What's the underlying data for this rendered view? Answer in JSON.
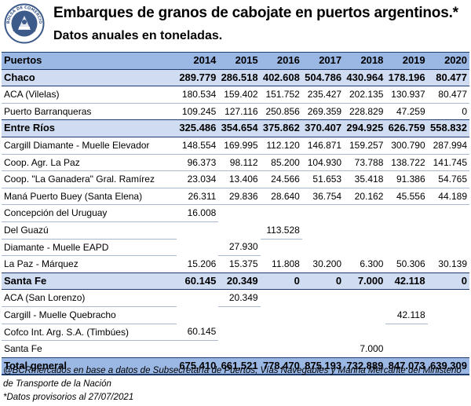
{
  "header": {
    "title": "Embarques de granos de cabojate en puertos argentinos.*",
    "subtitle": "Datos anuales en toneladas.",
    "logo_icon": "bolsa-comercio-rosario-seal-icon",
    "logo_text": "BOLSA DE COMERCIO DE ROSARIO"
  },
  "table": {
    "columns": [
      "Puertos",
      "2014",
      "2015",
      "2016",
      "2017",
      "2018",
      "2019",
      "2020"
    ],
    "groups": [
      {
        "name": "Chaco",
        "values": [
          "289.779",
          "286.518",
          "402.608",
          "504.786",
          "430.964",
          "178.196",
          "80.477"
        ],
        "rows": [
          {
            "name": "ACA (Vilelas)",
            "values": [
              "180.534",
              "159.402",
              "151.752",
              "235.427",
              "202.135",
              "130.937",
              "80.477"
            ]
          },
          {
            "name": "Puerto Barranqueras",
            "values": [
              "109.245",
              "127.116",
              "250.856",
              "269.359",
              "228.829",
              "47.259",
              "0"
            ]
          }
        ]
      },
      {
        "name": "Entre Ríos",
        "values": [
          "325.486",
          "354.654",
          "375.862",
          "370.407",
          "294.925",
          "626.759",
          "558.832"
        ],
        "rows": [
          {
            "name": "Cargill Diamante - Muelle Elevador",
            "values": [
              "148.554",
              "169.995",
              "112.120",
              "146.871",
              "159.257",
              "300.790",
              "287.994"
            ]
          },
          {
            "name": "Coop. Agr. La Paz",
            "values": [
              "96.373",
              "98.112",
              "85.200",
              "104.930",
              "73.788",
              "138.722",
              "141.745"
            ]
          },
          {
            "name": "Coop. \"La Ganadera\" Gral. Ramírez",
            "values": [
              "23.034",
              "13.406",
              "24.566",
              "51.653",
              "35.418",
              "91.386",
              "54.765"
            ]
          },
          {
            "name": "Maná Puerto Buey (Santa Elena)",
            "values": [
              "26.311",
              "29.836",
              "28.640",
              "36.754",
              "20.162",
              "45.556",
              "44.189"
            ]
          },
          {
            "name": "Concepción del Uruguay",
            "values": [
              "16.008",
              "",
              "",
              "",
              "",
              "",
              ""
            ]
          },
          {
            "name": "Del Guazú",
            "values": [
              "",
              "",
              "113.528",
              "",
              "",
              "",
              ""
            ]
          },
          {
            "name": "Diamante - Muelle EAPD",
            "values": [
              "",
              "27.930",
              "",
              "",
              "",
              "",
              ""
            ]
          },
          {
            "name": "La Paz - Márquez",
            "values": [
              "15.206",
              "15.375",
              "11.808",
              "30.200",
              "6.300",
              "50.306",
              "30.139"
            ]
          }
        ]
      },
      {
        "name": "Santa Fe",
        "values": [
          "60.145",
          "20.349",
          "0",
          "0",
          "7.000",
          "42.118",
          "0"
        ],
        "rows": [
          {
            "name": "ACA (San Lorenzo)",
            "values": [
              "",
              "20.349",
              "",
              "",
              "",
              "",
              ""
            ]
          },
          {
            "name": "Cargill - Muelle Quebracho",
            "values": [
              "",
              "",
              "",
              "",
              "",
              "42.118",
              ""
            ]
          },
          {
            "name": "Cofco Int. Arg. S.A. (Timbúes)",
            "values": [
              "60.145",
              "",
              "",
              "",
              "",
              "",
              ""
            ]
          },
          {
            "name": "Santa Fe",
            "values": [
              "",
              "",
              "",
              "",
              "7.000",
              "",
              ""
            ]
          }
        ]
      }
    ],
    "total": {
      "name": "Total general",
      "values": [
        "675.410",
        "661.521",
        "778.470",
        "875.193",
        "732.889",
        "847.073",
        "639.309"
      ]
    }
  },
  "notes": {
    "source": "@BCRmercados en base a datos de Subsecretaría de Puertos, Vías Navegables y Marina Mercante del Ministerio de Transporte de la Nación",
    "provisional": "*Datos provisorios al 27/07/2021"
  },
  "colors": {
    "header_fill": "#9bb7e4",
    "group_fill": "#cfdcf1",
    "border": "#1f3b6e",
    "logo": "#3c5a8a"
  }
}
